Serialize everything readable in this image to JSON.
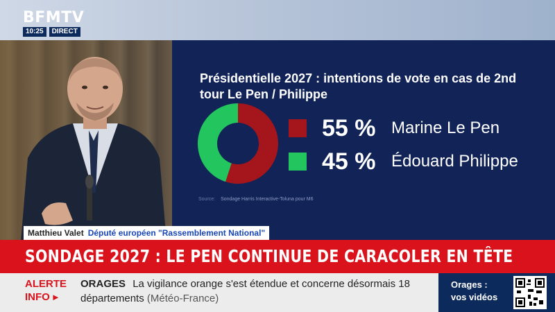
{
  "channel": {
    "logo": "BFMTV",
    "time": "10:25",
    "live_label": "DIRECT"
  },
  "poll": {
    "title": "Présidentielle 2027 : intentions de vote en cas de 2nd tour Le Pen / Philippe",
    "source_label": "Source:",
    "source_text": "Sondage Harris Interactive-Toluna pour M6",
    "candidates": [
      {
        "percent": "55 %",
        "name": "Marine Le Pen",
        "color": "#a5151c"
      },
      {
        "percent": "45 %",
        "name": "Édouard Philippe",
        "color": "#22c55e"
      }
    ]
  },
  "chart_data": {
    "type": "pie",
    "categories": [
      "Marine Le Pen",
      "Édouard Philippe"
    ],
    "values": [
      55,
      45
    ],
    "title": "Présidentielle 2027 : intentions de vote en cas de 2nd tour Le Pen / Philippe",
    "donut": true,
    "legend": "right"
  },
  "strap": {
    "name": "Matthieu Valet",
    "role": "Député européen \"Rassemblement National\""
  },
  "headline": "SONDAGE 2027 : LE PEN CONTINUE DE CARACOLER EN TÊTE",
  "ticker": {
    "alert_line1": "ALERTE",
    "alert_line2": "INFO",
    "topic": "ORAGES",
    "text": "La vigilance orange s'est étendue et concerne désormais 18 départements",
    "source": "(Météo-France)"
  },
  "promo": {
    "line1": "Orages :",
    "line2": "vos vidéos"
  },
  "colors": {
    "panel": "#112357",
    "headline_red": "#d9121b",
    "ticker_bg": "#ececec"
  }
}
